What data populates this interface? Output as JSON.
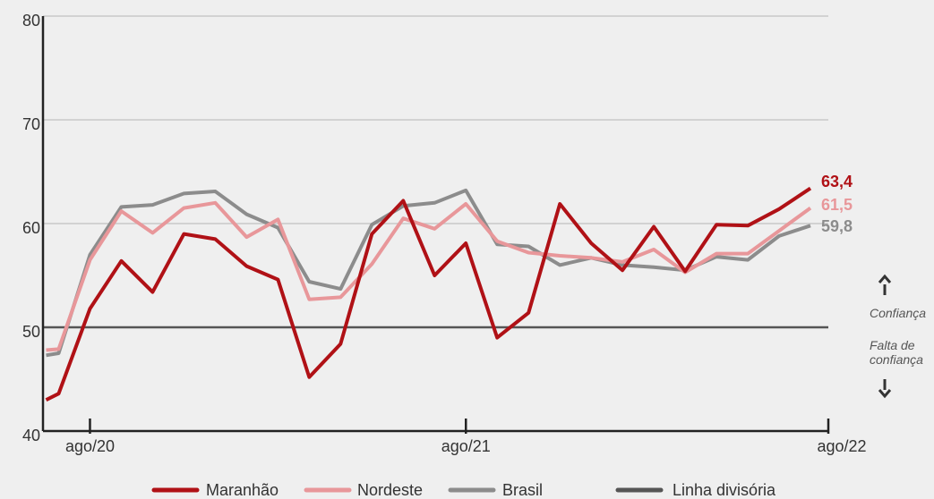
{
  "chart_data": {
    "type": "line",
    "x": [
      -1.4,
      -1,
      0,
      1,
      2,
      3,
      4,
      5,
      6,
      7,
      8,
      9,
      10,
      11,
      12,
      13,
      14,
      15,
      16,
      17,
      18,
      19,
      20,
      21,
      22,
      23
    ],
    "series": [
      {
        "name": "Maranhão",
        "color": "#b01116",
        "end_label": "63,4",
        "values": [
          43.0,
          43.6,
          51.8,
          56.4,
          53.4,
          59.0,
          58.5,
          55.9,
          54.6,
          45.2,
          48.4,
          59.0,
          62.2,
          55.0,
          58.1,
          49.0,
          51.4,
          61.9,
          58.1,
          55.5,
          59.7,
          55.4,
          59.9,
          59.8,
          61.4,
          63.4
        ]
      },
      {
        "name": "Nordeste",
        "color": "#e8979a",
        "end_label": "61,5",
        "values": [
          47.8,
          47.9,
          56.5,
          61.2,
          59.1,
          61.5,
          62.0,
          58.7,
          60.4,
          52.7,
          52.9,
          56.1,
          60.5,
          59.5,
          61.9,
          58.3,
          57.2,
          56.9,
          56.7,
          56.3,
          57.5,
          55.3,
          57.1,
          57.1,
          59.3,
          61.5
        ]
      },
      {
        "name": "Brasil",
        "color": "#8c8c8c",
        "end_label": "59,8",
        "values": [
          47.3,
          47.5,
          57.0,
          61.6,
          61.8,
          62.9,
          63.1,
          60.9,
          59.6,
          54.4,
          53.7,
          59.9,
          61.7,
          62.0,
          63.2,
          58.0,
          57.8,
          56.0,
          56.7,
          56.0,
          55.8,
          55.5,
          56.8,
          56.5,
          58.8,
          59.8
        ]
      }
    ],
    "reference_line": {
      "name": "Linha divisória",
      "value": 50,
      "color": "#555555"
    },
    "annotations": [
      "Confiança",
      "Falta de confiança"
    ],
    "xlim": [
      -1.5,
      24
    ],
    "xticks": [
      {
        "value": 0,
        "label": "ago/20"
      },
      {
        "value": 12,
        "label": "ago/21"
      },
      {
        "value": 24,
        "label": "ago/22"
      }
    ],
    "ylim": [
      40,
      80
    ],
    "yticks": [
      40,
      50,
      60,
      70,
      80
    ],
    "grid": true
  }
}
